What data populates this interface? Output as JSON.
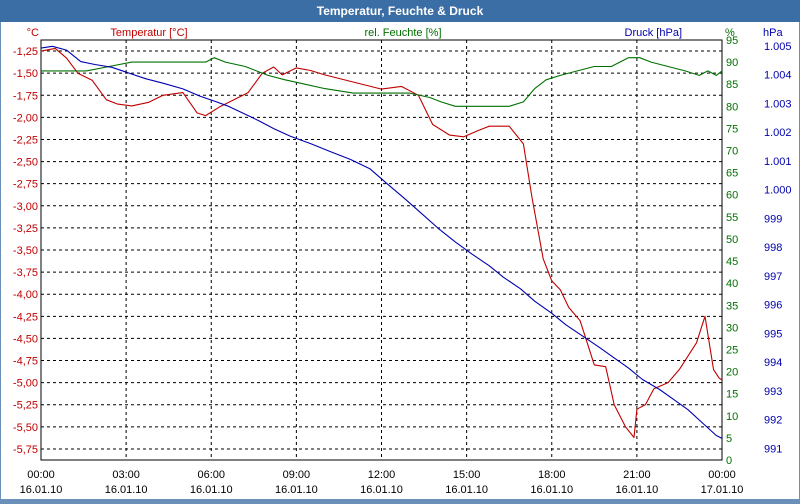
{
  "window": {
    "title": "Temperatur, Feuchte & Druck"
  },
  "colors": {
    "temperature": "#c00000",
    "humidity": "#007000",
    "pressure": "#0000b0",
    "grid": "#000000",
    "frame": "#3a6ea5"
  },
  "chart_data": {
    "type": "line",
    "title": "Temperatur, Feuchte & Druck",
    "grid": true,
    "x": {
      "ticks": [
        {
          "time": "00:00",
          "date": "16.01.10"
        },
        {
          "time": "03:00",
          "date": "16.01.10"
        },
        {
          "time": "06:00",
          "date": "16.01.10"
        },
        {
          "time": "09:00",
          "date": "16.01.10"
        },
        {
          "time": "12:00",
          "date": "16.01.10"
        },
        {
          "time": "15:00",
          "date": "16.01.10"
        },
        {
          "time": "18:00",
          "date": "16.01.10"
        },
        {
          "time": "21:00",
          "date": "16.01.10"
        },
        {
          "time": "00:00",
          "date": "17.01.10"
        }
      ],
      "range_hours": [
        0,
        24
      ]
    },
    "axes": {
      "temperature": {
        "label": "Temperatur [°C]",
        "unit": "°C",
        "range": [
          -5.875,
          -1.125
        ],
        "ticks": [
          "-1,25",
          "-1,50",
          "-1,75",
          "-2,00",
          "-2,25",
          "-2,50",
          "-2,75",
          "-3,00",
          "-3,25",
          "-3,50",
          "-3,75",
          "-4,00",
          "-4,25",
          "-4,50",
          "-4,75",
          "-5,00",
          "-5,25",
          "-5,50",
          "-5,75"
        ],
        "tick_values": [
          -1.25,
          -1.5,
          -1.75,
          -2.0,
          -2.25,
          -2.5,
          -2.75,
          -3.0,
          -3.25,
          -3.5,
          -3.75,
          -4.0,
          -4.25,
          -4.5,
          -4.75,
          -5.0,
          -5.25,
          -5.5,
          -5.75
        ]
      },
      "humidity": {
        "label": "rel. Feuchte [%]",
        "unit": "%",
        "range": [
          0,
          95
        ],
        "ticks": [
          "95",
          "90",
          "85",
          "80",
          "75",
          "70",
          "65",
          "60",
          "55",
          "50",
          "45",
          "40",
          "35",
          "30",
          "25",
          "20",
          "15",
          "10",
          "5",
          "0"
        ],
        "tick_values": [
          95,
          90,
          85,
          80,
          75,
          70,
          65,
          60,
          55,
          50,
          45,
          40,
          35,
          30,
          25,
          20,
          15,
          10,
          5,
          0
        ]
      },
      "pressure": {
        "label": "Druck [hPa]",
        "unit": "hPa",
        "range": [
          990.6,
          1005.2
        ],
        "ticks": [
          "1.005",
          "1.004",
          "1.003",
          "1.002",
          "1.001",
          "1.000",
          "999",
          "998",
          "997",
          "996",
          "995",
          "994",
          "993",
          "992",
          "991"
        ],
        "tick_values": [
          1005,
          1004,
          1003,
          1002,
          1001,
          1000,
          999,
          998,
          997,
          996,
          995,
          994,
          993,
          992,
          991
        ]
      }
    },
    "series": [
      {
        "name": "Temperatur [°C]",
        "axis": "temperature",
        "x_hours": [
          0,
          0.5,
          0.9,
          1.3,
          1.8,
          2.3,
          2.7,
          3.2,
          3.8,
          4.3,
          5.0,
          5.5,
          5.8,
          6.3,
          6.8,
          7.3,
          7.8,
          8.2,
          8.5,
          9.0,
          9.5,
          10.0,
          11.0,
          12.0,
          12.7,
          13.3,
          13.8,
          14.4,
          14.9,
          15.4,
          15.8,
          16.5,
          17.0,
          17.3,
          17.7,
          18.0,
          18.3,
          18.6,
          19.0,
          19.5,
          19.9,
          20.2,
          20.6,
          20.9,
          21.0,
          21.3,
          21.6,
          22.1,
          22.5,
          23.1,
          23.4,
          23.7,
          23.9,
          24.0
        ],
        "values": [
          -1.25,
          -1.22,
          -1.33,
          -1.5,
          -1.58,
          -1.8,
          -1.85,
          -1.87,
          -1.83,
          -1.75,
          -1.72,
          -1.95,
          -1.98,
          -1.88,
          -1.8,
          -1.72,
          -1.5,
          -1.43,
          -1.52,
          -1.44,
          -1.47,
          -1.52,
          -1.6,
          -1.68,
          -1.65,
          -1.75,
          -2.08,
          -2.2,
          -2.22,
          -2.15,
          -2.1,
          -2.1,
          -2.3,
          -2.9,
          -3.6,
          -3.85,
          -3.95,
          -4.15,
          -4.3,
          -4.8,
          -4.82,
          -5.25,
          -5.5,
          -5.62,
          -5.3,
          -5.25,
          -5.07,
          -5.0,
          -4.85,
          -4.55,
          -4.25,
          -4.85,
          -4.95,
          -4.97
        ]
      },
      {
        "name": "rel. Feuchte [%]",
        "axis": "humidity",
        "x_hours": [
          0,
          0.4,
          0.9,
          1.6,
          2.4,
          3.2,
          4.2,
          5.2,
          5.8,
          6.1,
          6.5,
          7.2,
          8.0,
          8.6,
          9.3,
          10.0,
          11.0,
          12.0,
          13.0,
          13.7,
          14.1,
          14.6,
          15.2,
          15.8,
          16.5,
          17.0,
          17.4,
          17.8,
          18.3,
          18.9,
          19.5,
          20.1,
          20.7,
          21.1,
          21.5,
          22.1,
          22.7,
          23.2,
          23.5,
          23.8,
          24.0
        ],
        "values": [
          88,
          88,
          88,
          88,
          89,
          90,
          90,
          90,
          90,
          91,
          90,
          89,
          87,
          86,
          85,
          84,
          83,
          83,
          83,
          82,
          81,
          80,
          80,
          80,
          80,
          81,
          84,
          86,
          87,
          88,
          89,
          89,
          91,
          91,
          90,
          89,
          88,
          87,
          88,
          87,
          88
        ]
      },
      {
        "name": "Druck [hPa]",
        "axis": "pressure",
        "x_hours": [
          0,
          0.4,
          0.9,
          1.4,
          1.9,
          2.5,
          3.1,
          3.7,
          4.3,
          5.0,
          5.6,
          6.1,
          6.6,
          7.2,
          7.7,
          8.2,
          8.8,
          9.5,
          10.2,
          10.9,
          11.6,
          12.2,
          12.8,
          13.4,
          14.0,
          14.6,
          15.2,
          15.8,
          16.3,
          16.9,
          17.4,
          18.0,
          18.5,
          19.1,
          19.7,
          20.2,
          20.7,
          21.2,
          21.8,
          22.3,
          22.8,
          23.3,
          23.8,
          24.0
        ],
        "values": [
          1004.92,
          1004.98,
          1004.85,
          1004.45,
          1004.35,
          1004.25,
          1004.05,
          1003.85,
          1003.7,
          1003.5,
          1003.25,
          1003.08,
          1002.9,
          1002.62,
          1002.38,
          1002.12,
          1001.85,
          1001.6,
          1001.32,
          1001.05,
          1000.72,
          1000.2,
          999.7,
          999.18,
          998.65,
          998.18,
          997.75,
          997.35,
          996.95,
          996.55,
          996.12,
          995.7,
          995.3,
          994.9,
          994.5,
          994.15,
          993.8,
          993.4,
          993.05,
          992.7,
          992.35,
          991.9,
          991.45,
          991.35
        ]
      }
    ]
  }
}
